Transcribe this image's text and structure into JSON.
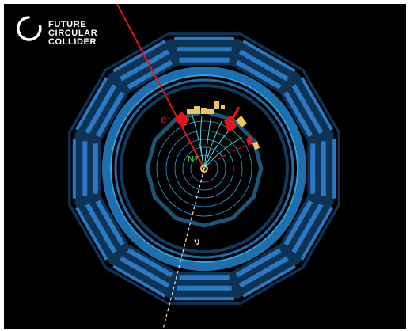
{
  "logo": {
    "lines": [
      "FUTURE",
      "CIRCULAR",
      "COLLIDER"
    ]
  },
  "labels": {
    "electron": "e⁻",
    "neutral_lepton": "N?",
    "neutrino": "ν"
  },
  "colors": {
    "background": "#000000",
    "outer_calorimeter": "#0f3354",
    "calorimeter_cells": "#2a79c4",
    "solenoid_ring": "#1e6fb0",
    "solenoid_highlight": "#2fa6e0",
    "inner_detector": "#1b5577",
    "tracker_layers": "#2aa8d8",
    "charged_tracks": "#4fd6e8",
    "electron": "#e3141c",
    "energy_deposits": "#f3c35a",
    "neutral_lepton_label": "#3cc84a",
    "neutrino_line": "#e6e6e6",
    "logo_text": "#ffffff"
  }
}
